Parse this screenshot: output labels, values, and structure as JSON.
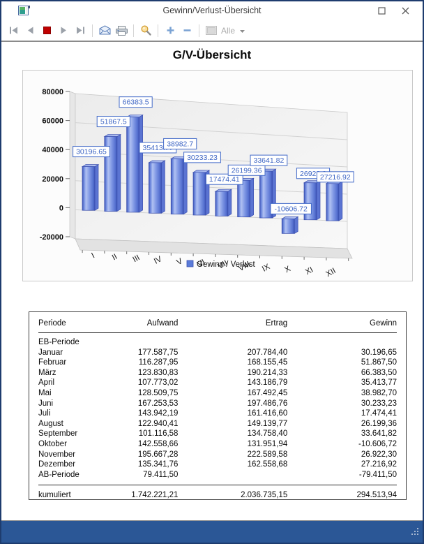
{
  "window": {
    "title": "Gewinn/Verlust-Übersicht"
  },
  "toolbar": {
    "filter_label": "Alle"
  },
  "report": {
    "title": "G/V-Übersicht"
  },
  "colors": {
    "bar_blue": "#5b7cd9",
    "label_blue": "#3e66c4",
    "label_border": "#4169c8",
    "statusbar_blue": "#2b5796",
    "stop_red": "#c00000"
  },
  "chart_data": {
    "type": "bar",
    "title": "G/V-Übersicht",
    "categories": [
      "I",
      "II",
      "III",
      "IV",
      "V",
      "VI",
      "VII",
      "VIII",
      "IX",
      "X",
      "XI",
      "XII"
    ],
    "series": [
      {
        "name": "Gewinn / Verlust",
        "values": [
          30196.65,
          51867.5,
          66383.5,
          35413.77,
          38982.7,
          30233.23,
          17474.41,
          26199.36,
          33641.82,
          -10606.72,
          26922.3,
          27216.92
        ],
        "point_labels": [
          "30196.65",
          "51867.5",
          "66383.5",
          "35413.77",
          "38982.7",
          "30233.23",
          "17474.41",
          "26199.36",
          "33641.82",
          "-10606.72",
          "26922.3",
          "27216.92"
        ]
      }
    ],
    "ylim": [
      -20000,
      80000
    ],
    "yticks": [
      80000,
      60000,
      40000,
      20000,
      0,
      -20000
    ],
    "grid": true,
    "legend_position": "bottom",
    "style": "3d"
  },
  "table": {
    "columns": [
      "Periode",
      "Aufwand",
      "Ertrag",
      "Gewinn"
    ],
    "rows": [
      [
        "EB-Periode",
        "",
        "",
        ""
      ],
      [
        "Januar",
        "177.587,75",
        "207.784,40",
        "30.196,65"
      ],
      [
        "Februar",
        "116.287,95",
        "168.155,45",
        "51.867,50"
      ],
      [
        "März",
        "123.830,83",
        "190.214,33",
        "66.383,50"
      ],
      [
        "April",
        "107.773,02",
        "143.186,79",
        "35.413,77"
      ],
      [
        "Mai",
        "128.509,75",
        "167.492,45",
        "38.982,70"
      ],
      [
        "Juni",
        "167.253,53",
        "197.486,76",
        "30.233,23"
      ],
      [
        "Juli",
        "143.942,19",
        "161.416,60",
        "17.474,41"
      ],
      [
        "August",
        "122.940,41",
        "149.139,77",
        "26.199,36"
      ],
      [
        "September",
        "101.116,58",
        "134.758,40",
        "33.641,82"
      ],
      [
        "Oktober",
        "142.558,66",
        "131.951,94",
        "-10.606,72"
      ],
      [
        "November",
        "195.667,28",
        "222.589,58",
        "26.922,30"
      ],
      [
        "Dezember",
        "135.341,76",
        "162.558,68",
        "27.216,92"
      ],
      [
        "AB-Periode",
        "79.411,50",
        "",
        "-79.411,50"
      ]
    ],
    "total_row": [
      "kumuliert",
      "1.742.221,21",
      "2.036.735,15",
      "294.513,94"
    ]
  }
}
